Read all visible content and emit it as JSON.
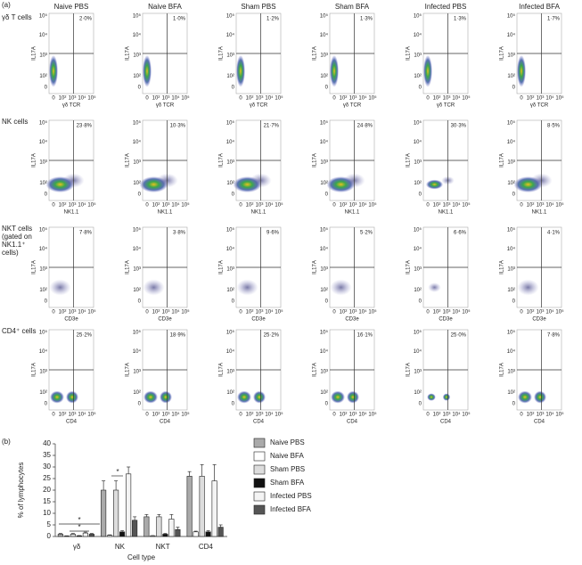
{
  "panel_a": {
    "label": "(a)",
    "columns": [
      "Naive PBS",
      "Naive BFA",
      "Sham PBS",
      "Sham BFA",
      "Infected PBS",
      "Infected BFA"
    ],
    "y_label": "IL17A",
    "ticks": [
      "0",
      "10²",
      "10³",
      "10⁴",
      "10⁵"
    ],
    "rows": [
      {
        "label": [
          "γδ T cells"
        ],
        "x_label": "γδ TCR",
        "percentages": [
          "2·0%",
          "1·0%",
          "1·2%",
          "1·3%",
          "1·3%",
          "1·7%"
        ]
      },
      {
        "label": [
          "NK cells"
        ],
        "x_label": "NK1.1",
        "percentages": [
          "23·8%",
          "10·3%",
          "21·7%",
          "24·8%",
          "30·3%",
          "8·5%"
        ]
      },
      {
        "label": [
          "NKT cells",
          "(gated on",
          "NK1.1⁺",
          "cells)"
        ],
        "x_label": "CD3e",
        "percentages": [
          "7·8%",
          "3·8%",
          "9·6%",
          "5·2%",
          "6·6%",
          "4·1%"
        ]
      },
      {
        "label": [
          "CD4⁺ cells"
        ],
        "x_label": "CD4",
        "percentages": [
          "25·2%",
          "18·9%",
          "25·2%",
          "16·1%",
          "25·0%",
          "7·8%"
        ]
      }
    ]
  },
  "chart_data": {
    "type": "bar",
    "panel_label": "(b)",
    "y_label": "% of lymphocytes",
    "x_label": "Cell type",
    "categories": [
      "γδ",
      "NK",
      "NKT",
      "CD4"
    ],
    "series": [
      {
        "name": "Naive PBS",
        "color": "#aaaaaa",
        "values": [
          1,
          20,
          8.5,
          26
        ],
        "errors": [
          0.3,
          4,
          1,
          2
        ]
      },
      {
        "name": "Naive BFA",
        "color": "#ffffff",
        "values": [
          0.2,
          0.5,
          0.3,
          2
        ],
        "errors": [
          0.1,
          0.2,
          0.1,
          0.3
        ]
      },
      {
        "name": "Sham PBS",
        "color": "#dddddd",
        "values": [
          1,
          20,
          8.5,
          26
        ],
        "errors": [
          0.3,
          4,
          1,
          5
        ]
      },
      {
        "name": "Sham BFA",
        "color": "#111111",
        "values": [
          0.3,
          2,
          1,
          2
        ],
        "errors": [
          0.1,
          0.5,
          0.3,
          0.5
        ]
      },
      {
        "name": "Infected PBS",
        "color": "#f4f4f4",
        "values": [
          1.5,
          27,
          7.5,
          24
        ],
        "errors": [
          0.4,
          3,
          2,
          7
        ]
      },
      {
        "name": "Infected BFA",
        "color": "#555555",
        "values": [
          1,
          7,
          3,
          4
        ],
        "errors": [
          0.3,
          1.5,
          1,
          1
        ]
      }
    ],
    "annotations": [
      "*",
      "*",
      "*"
    ],
    "ylim": [
      0,
      40
    ],
    "yticks": [
      0,
      5,
      10,
      15,
      20,
      25,
      30,
      35,
      40
    ]
  }
}
